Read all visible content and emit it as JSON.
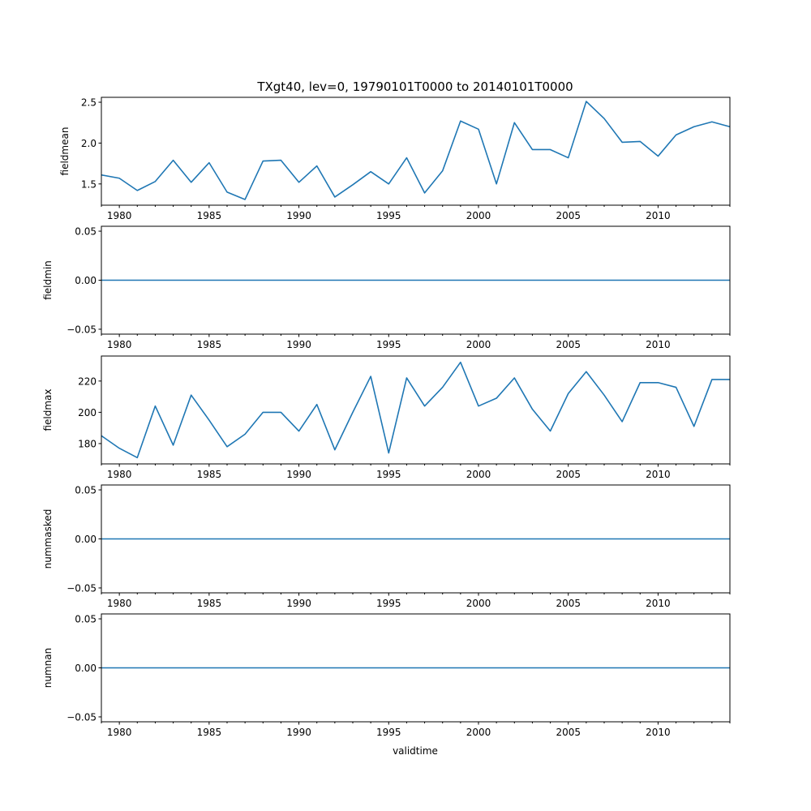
{
  "chart_data": {
    "type": "line",
    "title": "TXgt40, lev=0, 19790101T0000 to 20140101T0000",
    "xlabel": "validtime",
    "xlim": [
      1979,
      2014
    ],
    "x": [
      1979,
      1980,
      1981,
      1982,
      1983,
      1984,
      1985,
      1986,
      1987,
      1988,
      1989,
      1990,
      1991,
      1992,
      1993,
      1994,
      1995,
      1996,
      1997,
      1998,
      1999,
      2000,
      2001,
      2002,
      2003,
      2004,
      2005,
      2006,
      2007,
      2008,
      2009,
      2010,
      2011,
      2012,
      2013,
      2014
    ],
    "x_major_ticks": [
      1980,
      1985,
      1990,
      1995,
      2000,
      2005,
      2010
    ],
    "x_tick_labels": [
      "1980",
      "1985",
      "1990",
      "1995",
      "2000",
      "2005",
      "2010"
    ],
    "panels": [
      {
        "ylabel": "fieldmean",
        "ylim": [
          1.24,
          2.56
        ],
        "yticks": [
          1.5,
          2.0,
          2.5
        ],
        "ytick_labels": [
          "1.5",
          "2.0",
          "2.5"
        ],
        "values": [
          1.61,
          1.57,
          1.42,
          1.53,
          1.79,
          1.52,
          1.76,
          1.4,
          1.31,
          1.78,
          1.79,
          1.52,
          1.72,
          1.34,
          1.49,
          1.65,
          1.5,
          1.82,
          1.39,
          1.66,
          2.27,
          2.17,
          1.5,
          2.25,
          1.92,
          1.92,
          1.82,
          2.51,
          2.3,
          2.01,
          2.02,
          1.84,
          2.1,
          2.2,
          2.26,
          2.2
        ]
      },
      {
        "ylabel": "fieldmin",
        "ylim": [
          -0.055,
          0.055
        ],
        "yticks": [
          -0.05,
          0.0,
          0.05
        ],
        "ytick_labels": [
          "−0.05",
          "0.00",
          "0.05"
        ],
        "values": [
          0,
          0,
          0,
          0,
          0,
          0,
          0,
          0,
          0,
          0,
          0,
          0,
          0,
          0,
          0,
          0,
          0,
          0,
          0,
          0,
          0,
          0,
          0,
          0,
          0,
          0,
          0,
          0,
          0,
          0,
          0,
          0,
          0,
          0,
          0,
          0
        ]
      },
      {
        "ylabel": "fieldmax",
        "ylim": [
          167,
          236
        ],
        "yticks": [
          180,
          200,
          220
        ],
        "ytick_labels": [
          "180",
          "200",
          "220"
        ],
        "values": [
          185,
          177,
          171,
          204,
          179,
          211,
          195,
          178,
          186,
          200,
          200,
          188,
          205,
          176,
          200,
          223,
          174,
          222,
          204,
          216,
          232,
          204,
          209,
          222,
          202,
          188,
          212,
          226,
          211,
          194,
          219,
          219,
          216,
          191,
          221,
          221
        ]
      },
      {
        "ylabel": "nummasked",
        "ylim": [
          -0.055,
          0.055
        ],
        "yticks": [
          -0.05,
          0.0,
          0.05
        ],
        "ytick_labels": [
          "−0.05",
          "0.00",
          "0.05"
        ],
        "values": [
          0,
          0,
          0,
          0,
          0,
          0,
          0,
          0,
          0,
          0,
          0,
          0,
          0,
          0,
          0,
          0,
          0,
          0,
          0,
          0,
          0,
          0,
          0,
          0,
          0,
          0,
          0,
          0,
          0,
          0,
          0,
          0,
          0,
          0,
          0,
          0
        ]
      },
      {
        "ylabel": "numnan",
        "ylim": [
          -0.055,
          0.055
        ],
        "yticks": [
          -0.05,
          0.0,
          0.05
        ],
        "ytick_labels": [
          "−0.05",
          "0.00",
          "0.05"
        ],
        "values": [
          0,
          0,
          0,
          0,
          0,
          0,
          0,
          0,
          0,
          0,
          0,
          0,
          0,
          0,
          0,
          0,
          0,
          0,
          0,
          0,
          0,
          0,
          0,
          0,
          0,
          0,
          0,
          0,
          0,
          0,
          0,
          0,
          0,
          0,
          0,
          0
        ]
      }
    ],
    "colors": {
      "line": "#1f77b4",
      "axes": "#000000",
      "background": "#ffffff"
    }
  }
}
